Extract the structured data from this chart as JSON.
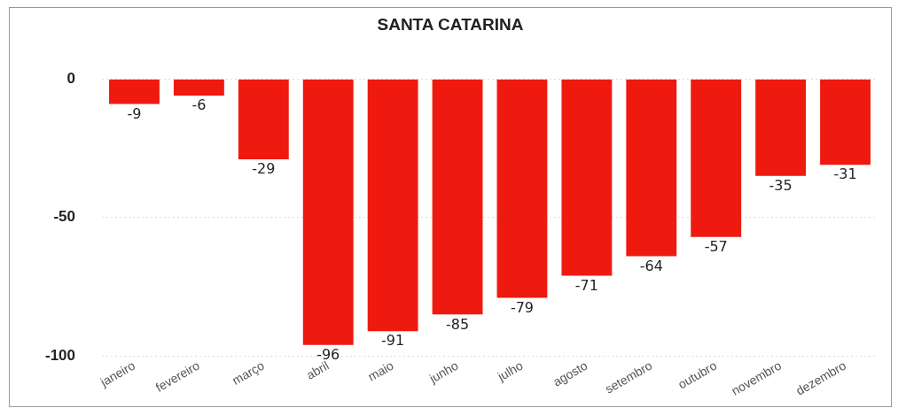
{
  "chart_data": {
    "type": "bar",
    "title": "SANTA CATARINA",
    "categories": [
      "janeiro",
      "fevereiro",
      "março",
      "abril",
      "maio",
      "junho",
      "julho",
      "agosto",
      "setembro",
      "outubro",
      "novembro",
      "dezembro"
    ],
    "values": [
      -9,
      -6,
      -29,
      -96,
      -91,
      -85,
      -79,
      -71,
      -64,
      -57,
      -35,
      -31
    ],
    "color": "#ee1a10",
    "ylim": [
      -100,
      0
    ],
    "yticks": [
      0,
      -50,
      -100
    ],
    "grid": "y",
    "data_labels": true
  }
}
